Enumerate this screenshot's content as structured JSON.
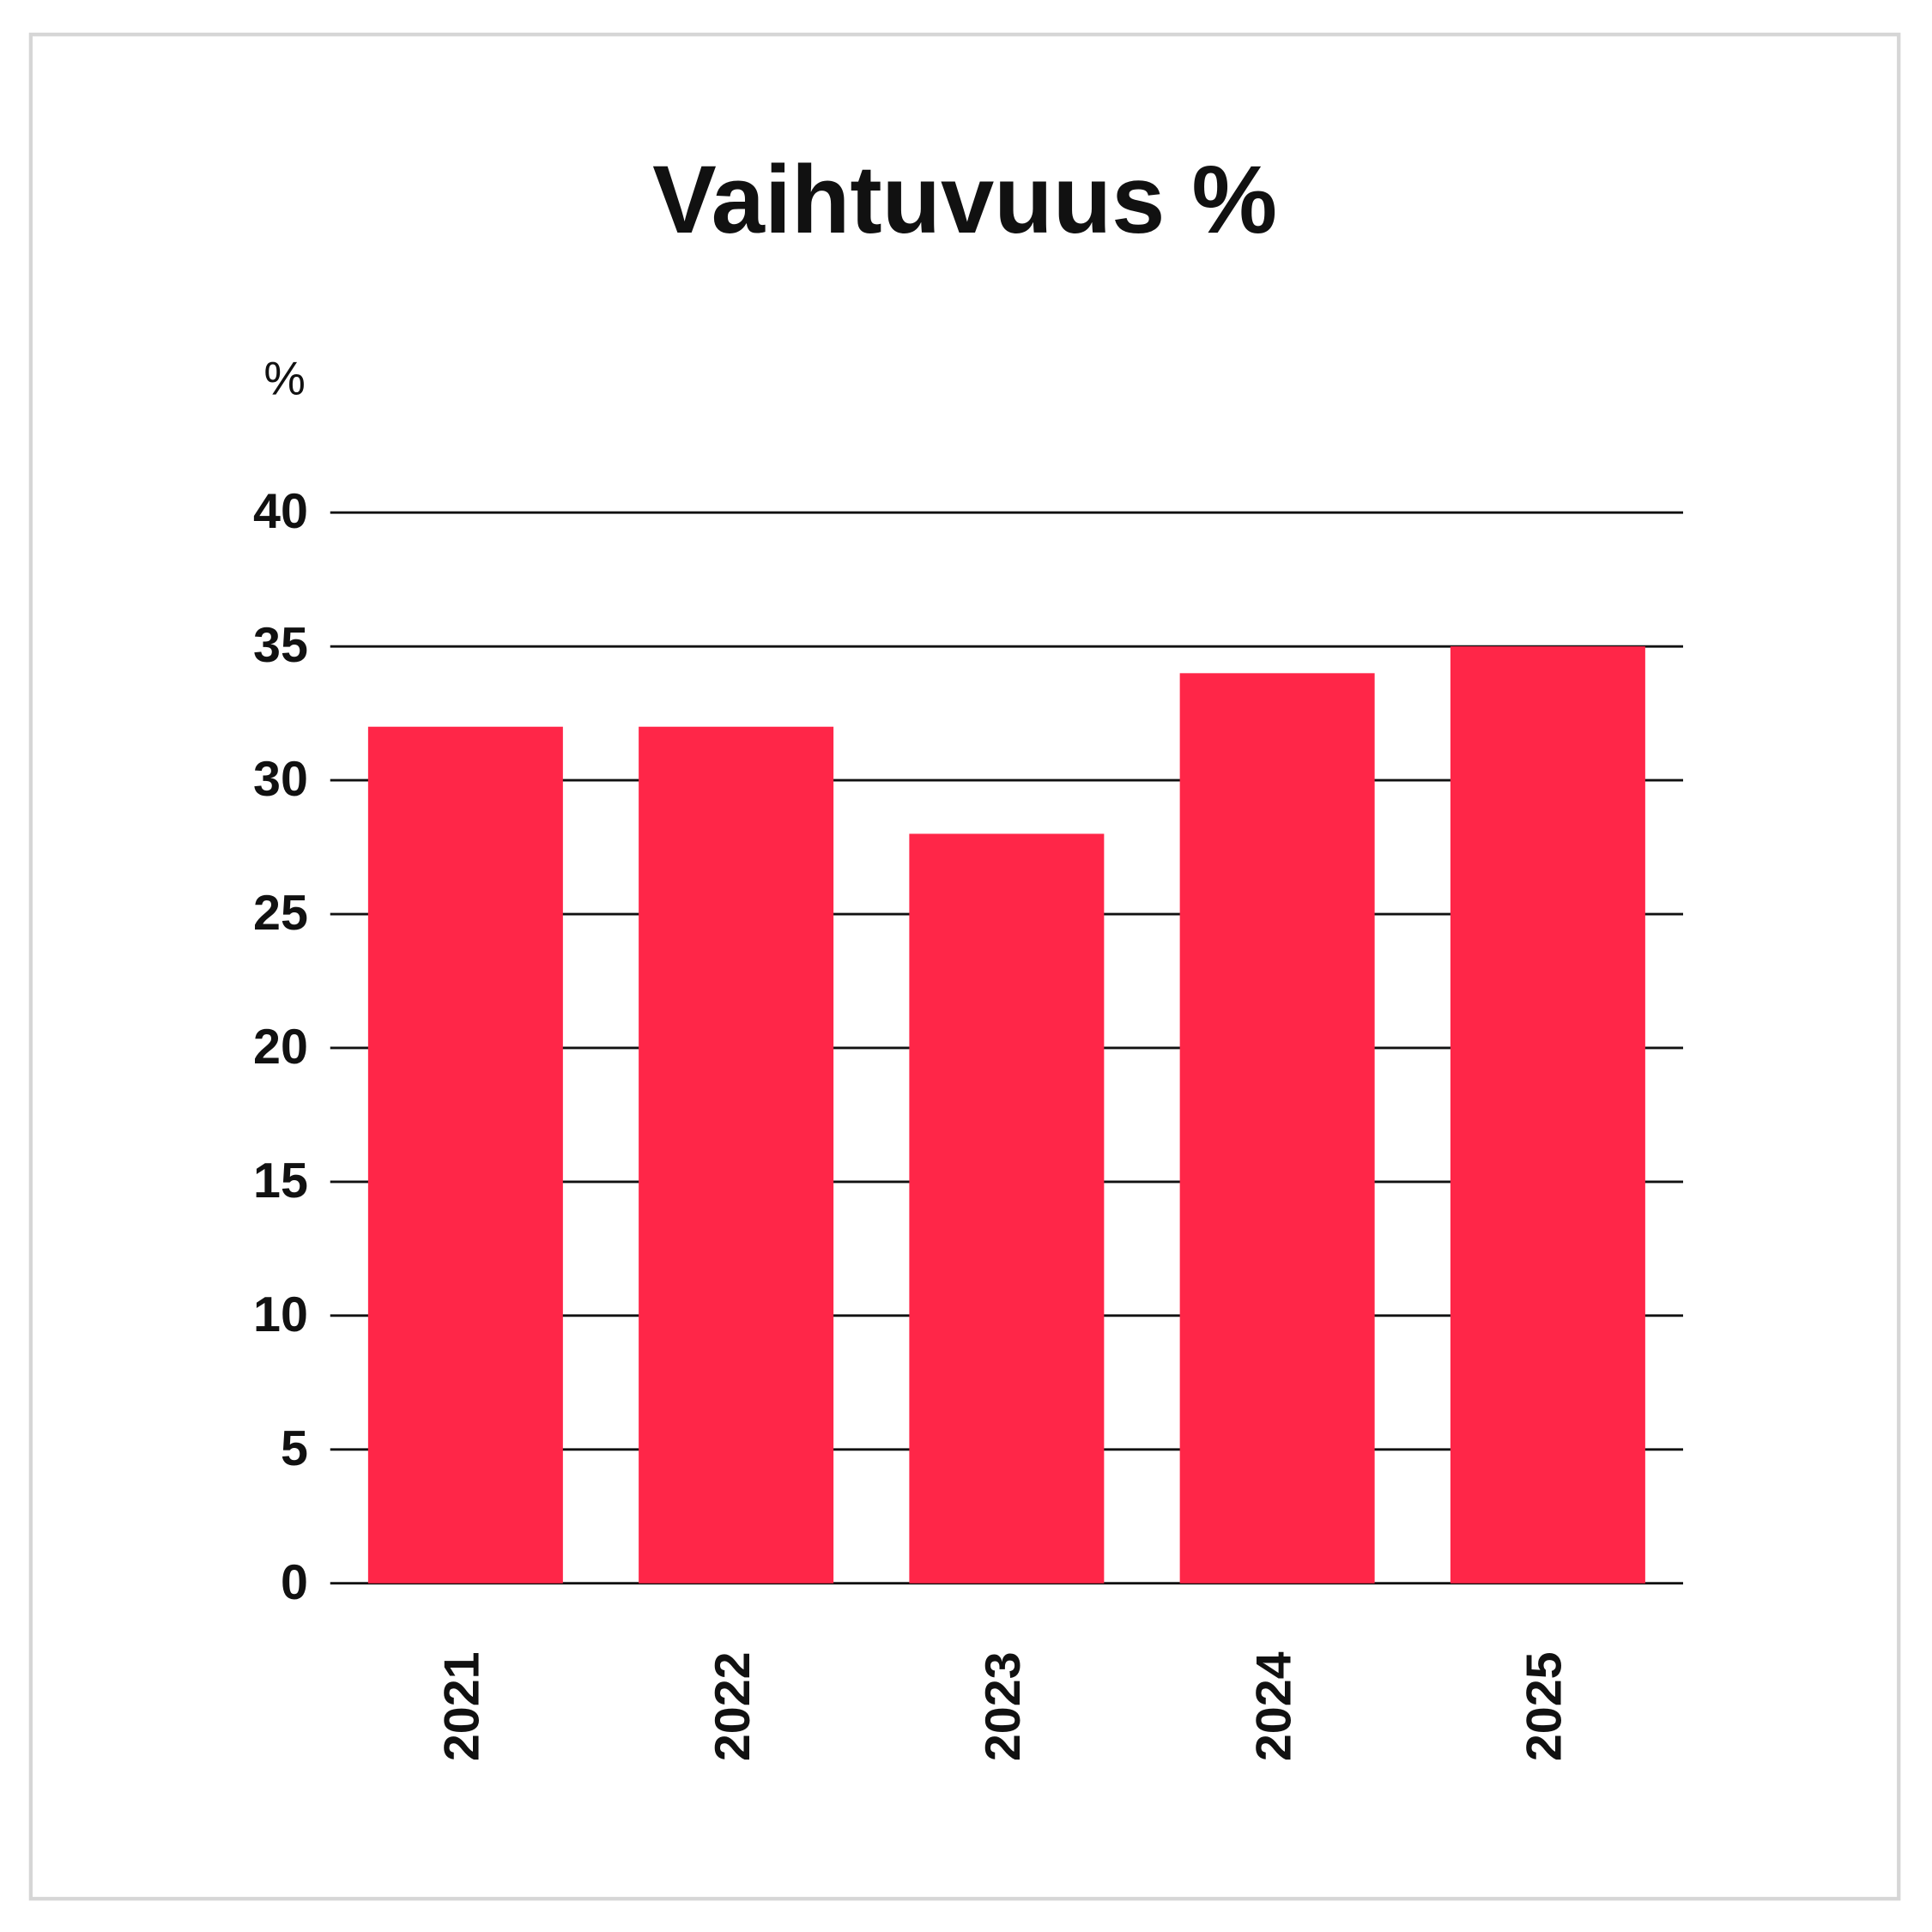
{
  "chart_data": {
    "type": "bar",
    "title": "Vaihtuvuus %",
    "y_label": "%",
    "categories": [
      "2021",
      "2022",
      "2023",
      "2024",
      "2025"
    ],
    "values": [
      32,
      32,
      28,
      34,
      35
    ],
    "color": "#ff2648",
    "ylim": [
      0,
      40
    ],
    "yticks": [
      0,
      5,
      10,
      15,
      20,
      25,
      30,
      35,
      40
    ],
    "grid": true
  }
}
